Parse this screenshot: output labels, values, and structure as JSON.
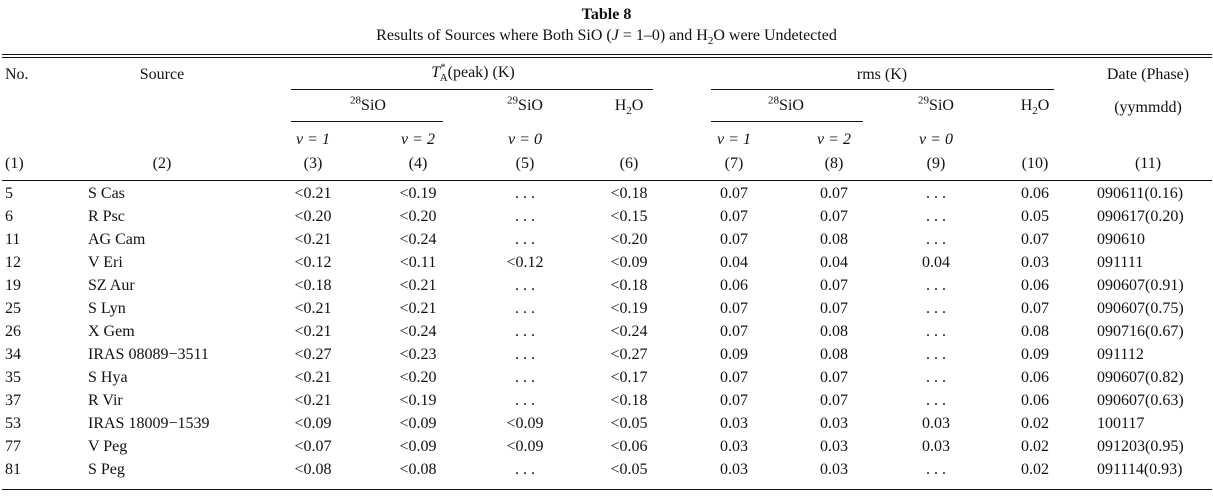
{
  "table": {
    "number": "Table 8",
    "title": "Results of Sources where Both SiO (J = 1–0) and H2O were Undetected",
    "headers": {
      "no": "No.",
      "source": "Source",
      "ta_group": "T*A(peak) (K)",
      "rms_group": "rms (K)",
      "date": "Date (Phase)",
      "date_unit": "(yymmdd)",
      "sio28": "28SiO",
      "sio29": "29SiO",
      "h2o": "H2O",
      "v1": "v = 1",
      "v2": "v = 2",
      "v0": "v = 0",
      "col_numbers": [
        "(1)",
        "(2)",
        "(3)",
        "(4)",
        "(5)",
        "(6)",
        "(7)",
        "(8)",
        "(9)",
        "(10)",
        "(11)"
      ]
    },
    "rows": [
      {
        "no": "5",
        "source": "S Cas",
        "ta_v1": "<0.21",
        "ta_v2": "<0.19",
        "ta_29": "...",
        "ta_h2o": "<0.18",
        "rms_v1": "0.07",
        "rms_v2": "0.07",
        "rms_29": "...",
        "rms_h2o": "0.06",
        "date": "090611(0.16)"
      },
      {
        "no": "6",
        "source": "R Psc",
        "ta_v1": "<0.20",
        "ta_v2": "<0.20",
        "ta_29": "...",
        "ta_h2o": "<0.15",
        "rms_v1": "0.07",
        "rms_v2": "0.07",
        "rms_29": "...",
        "rms_h2o": "0.05",
        "date": "090617(0.20)"
      },
      {
        "no": "11",
        "source": "AG Cam",
        "ta_v1": "<0.21",
        "ta_v2": "<0.24",
        "ta_29": "...",
        "ta_h2o": "<0.20",
        "rms_v1": "0.07",
        "rms_v2": "0.08",
        "rms_29": "...",
        "rms_h2o": "0.07",
        "date": "090610"
      },
      {
        "no": "12",
        "source": "V Eri",
        "ta_v1": "<0.12",
        "ta_v2": "<0.11",
        "ta_29": "<0.12",
        "ta_h2o": "<0.09",
        "rms_v1": "0.04",
        "rms_v2": "0.04",
        "rms_29": "0.04",
        "rms_h2o": "0.03",
        "date": "091111"
      },
      {
        "no": "19",
        "source": "SZ Aur",
        "ta_v1": "<0.18",
        "ta_v2": "<0.21",
        "ta_29": "...",
        "ta_h2o": "<0.18",
        "rms_v1": "0.06",
        "rms_v2": "0.07",
        "rms_29": "...",
        "rms_h2o": "0.06",
        "date": "090607(0.91)"
      },
      {
        "no": "25",
        "source": "S Lyn",
        "ta_v1": "<0.21",
        "ta_v2": "<0.21",
        "ta_29": "...",
        "ta_h2o": "<0.19",
        "rms_v1": "0.07",
        "rms_v2": "0.07",
        "rms_29": "...",
        "rms_h2o": "0.07",
        "date": "090607(0.75)"
      },
      {
        "no": "26",
        "source": "X Gem",
        "ta_v1": "<0.21",
        "ta_v2": "<0.24",
        "ta_29": "...",
        "ta_h2o": "<0.24",
        "rms_v1": "0.07",
        "rms_v2": "0.08",
        "rms_29": "...",
        "rms_h2o": "0.08",
        "date": "090716(0.67)"
      },
      {
        "no": "34",
        "source": "IRAS 08089−3511",
        "ta_v1": "<0.27",
        "ta_v2": "<0.23",
        "ta_29": "...",
        "ta_h2o": "<0.27",
        "rms_v1": "0.09",
        "rms_v2": "0.08",
        "rms_29": "...",
        "rms_h2o": "0.09",
        "date": "091112"
      },
      {
        "no": "35",
        "source": "S Hya",
        "ta_v1": "<0.21",
        "ta_v2": "<0.20",
        "ta_29": "...",
        "ta_h2o": "<0.17",
        "rms_v1": "0.07",
        "rms_v2": "0.07",
        "rms_29": "...",
        "rms_h2o": "0.06",
        "date": "090607(0.82)"
      },
      {
        "no": "37",
        "source": "R Vir",
        "ta_v1": "<0.21",
        "ta_v2": "<0.19",
        "ta_29": "...",
        "ta_h2o": "<0.18",
        "rms_v1": "0.07",
        "rms_v2": "0.07",
        "rms_29": "...",
        "rms_h2o": "0.06",
        "date": "090607(0.63)"
      },
      {
        "no": "53",
        "source": "IRAS 18009−1539",
        "ta_v1": "<0.09",
        "ta_v2": "<0.09",
        "ta_29": "<0.09",
        "ta_h2o": "<0.05",
        "rms_v1": "0.03",
        "rms_v2": "0.03",
        "rms_29": "0.03",
        "rms_h2o": "0.02",
        "date": "100117"
      },
      {
        "no": "77",
        "source": "V Peg",
        "ta_v1": "<0.07",
        "ta_v2": "<0.09",
        "ta_29": "<0.09",
        "ta_h2o": "<0.06",
        "rms_v1": "0.03",
        "rms_v2": "0.03",
        "rms_29": "0.03",
        "rms_h2o": "0.02",
        "date": "091203(0.95)"
      },
      {
        "no": "81",
        "source": "S Peg",
        "ta_v1": "<0.08",
        "ta_v2": "<0.08",
        "ta_29": "...",
        "ta_h2o": "<0.05",
        "rms_v1": "0.03",
        "rms_v2": "0.03",
        "rms_29": "...",
        "rms_h2o": "0.02",
        "date": "091114(0.93)"
      }
    ]
  }
}
